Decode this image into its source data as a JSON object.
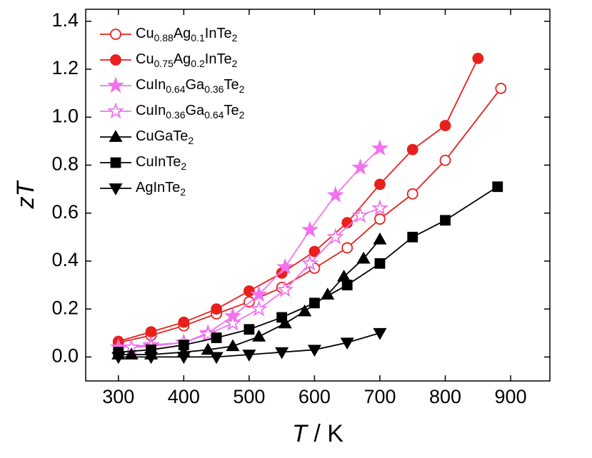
{
  "chart_data": {
    "type": "line",
    "x_label": "T / K",
    "y_label": "zT",
    "xlim": [
      250,
      960
    ],
    "ylim": [
      -0.1,
      1.45
    ],
    "xticks": [
      300,
      400,
      500,
      600,
      700,
      800,
      900
    ],
    "yticks": [
      {
        "value": 0,
        "label": "0.0"
      },
      0.2,
      0.4,
      0.6,
      0.8,
      {
        "value": 1,
        "label": "1.0"
      },
      1.2,
      1.4
    ],
    "legend": "top-left",
    "series": [
      {
        "name": "Cu0.88Ag0.1InTe2",
        "color": "#e8201c",
        "marker": "circle",
        "filled": false,
        "x": [
          300,
          350,
          400,
          450,
          500,
          550,
          600,
          650,
          700,
          750,
          800,
          885
        ],
        "values": [
          0.06,
          0.09,
          0.13,
          0.18,
          0.23,
          0.29,
          0.37,
          0.455,
          0.575,
          0.68,
          0.82,
          1.12
        ]
      },
      {
        "name": "Cu0.75Ag0.2InTe2",
        "color": "#e8201c",
        "marker": "circle",
        "filled": true,
        "x": [
          300,
          350,
          400,
          450,
          500,
          550,
          600,
          650,
          700,
          750,
          800,
          850
        ],
        "values": [
          0.065,
          0.105,
          0.145,
          0.2,
          0.275,
          0.35,
          0.44,
          0.56,
          0.72,
          0.865,
          0.965,
          1.245
        ]
      },
      {
        "name": "CuIn0.64Ga0.36Te2",
        "color": "#f272ee",
        "marker": "star",
        "filled": true,
        "x": [
          300,
          350,
          400,
          437,
          475,
          515,
          555,
          593,
          632,
          670,
          700
        ],
        "values": [
          0.04,
          0.05,
          0.06,
          0.1,
          0.17,
          0.26,
          0.375,
          0.53,
          0.675,
          0.79,
          0.87
        ]
      },
      {
        "name": "CuIn0.36Ga0.64Te2",
        "color": "#f272ee",
        "marker": "star",
        "filled": false,
        "x": [
          320,
          350,
          400,
          437,
          475,
          515,
          555,
          593,
          632,
          670,
          700
        ],
        "values": [
          0.04,
          0.045,
          0.06,
          0.095,
          0.14,
          0.2,
          0.28,
          0.39,
          0.5,
          0.59,
          0.62
        ]
      },
      {
        "name": "CuGaTe2",
        "color": "#000000",
        "marker": "triangle-up",
        "filled": true,
        "x": [
          300,
          320,
          350,
          400,
          437,
          475,
          515,
          555,
          585,
          620,
          645,
          675,
          700
        ],
        "values": [
          0.01,
          0.01,
          0.01,
          0.02,
          0.03,
          0.045,
          0.085,
          0.14,
          0.19,
          0.26,
          0.335,
          0.41,
          0.49
        ]
      },
      {
        "name": "CuInTe2",
        "color": "#000000",
        "marker": "square",
        "filled": true,
        "x": [
          300,
          350,
          400,
          450,
          500,
          550,
          600,
          650,
          700,
          750,
          800,
          880
        ],
        "values": [
          0.02,
          0.03,
          0.05,
          0.08,
          0.115,
          0.165,
          0.225,
          0.3,
          0.39,
          0.5,
          0.57,
          0.71
        ]
      },
      {
        "name": "AgInTe2",
        "color": "#000000",
        "marker": "triangle-down",
        "filled": true,
        "x": [
          300,
          350,
          400,
          450,
          500,
          550,
          600,
          650,
          700
        ],
        "values": [
          0,
          0,
          0,
          0,
          0.01,
          0.02,
          0.03,
          0.06,
          0.1
        ]
      }
    ]
  }
}
